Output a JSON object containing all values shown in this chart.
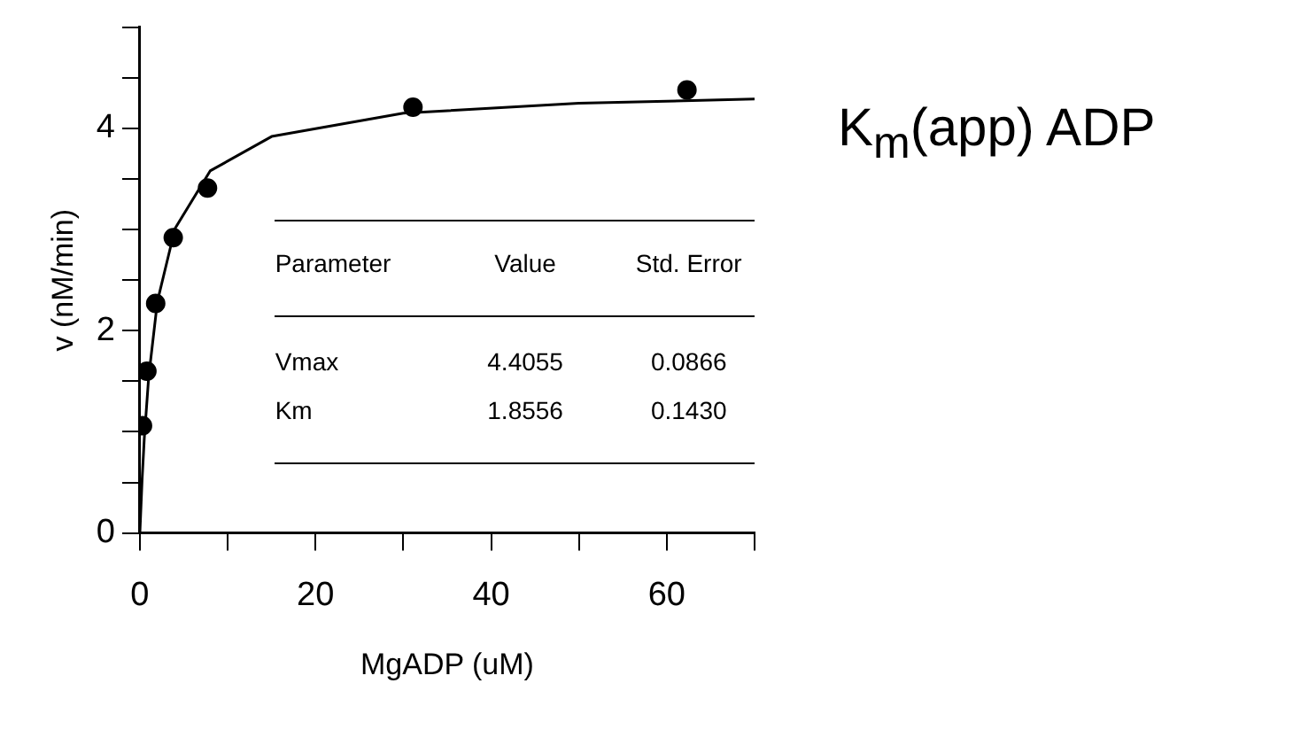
{
  "chart_data": {
    "type": "scatter",
    "title": "K$_{m}$(app) ADP",
    "xlabel": "MgADP (uM)",
    "ylabel": "v (nM/min)",
    "xlim": [
      0,
      70
    ],
    "xticks": [
      0,
      {
        "value": 10,
        "label": null
      },
      20,
      {
        "value": 30,
        "label": null
      },
      40,
      {
        "value": 50,
        "label": null
      },
      60,
      {
        "value": 70,
        "label": null
      }
    ],
    "ylim": [
      0,
      5
    ],
    "yticks": [
      0,
      {
        "value": 0.5,
        "label": null
      },
      {
        "value": 1,
        "label": null
      },
      {
        "value": 1.5,
        "label": null
      },
      2,
      {
        "value": 2.5,
        "label": null
      },
      {
        "value": 3,
        "label": null
      },
      {
        "value": 3.5,
        "label": null
      },
      4,
      {
        "value": 4.5,
        "label": null
      },
      {
        "value": 5,
        "label": null
      }
    ],
    "grid": false,
    "legend": false,
    "marker": "circle",
    "series": [
      {
        "color": "#000000",
        "x": [
          0.3,
          0.8,
          1.8,
          3.8,
          7.7,
          31.1,
          62.3
        ],
        "values": [
          1.06,
          1.6,
          2.27,
          2.92,
          3.41,
          4.21,
          4.38
        ]
      },
      {
        "type": "line",
        "color": "#000000",
        "marker": "none",
        "line_style": "solid",
        "x": [
          0,
          0.25,
          0.5,
          1,
          2,
          4,
          8,
          15,
          30,
          50,
          70
        ],
        "values": [
          0,
          0.52,
          0.93,
          1.54,
          2.29,
          3.01,
          3.58,
          3.92,
          4.15,
          4.25,
          4.29
        ]
      }
    ],
    "annotations": [
      "Parameter",
      "Value",
      "Std. Error",
      "Vmax",
      "4.4055",
      "0.0866",
      "Km",
      "1.8556",
      "0.1430"
    ]
  }
}
